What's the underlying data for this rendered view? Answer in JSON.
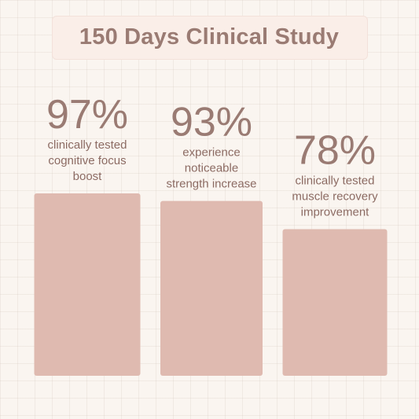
{
  "title": "150 Days Clinical Study",
  "colors": {
    "background": "#faf5f0",
    "title_box": "#faeee8",
    "text": "#9a7b73",
    "bar": "#dfbab0"
  },
  "chart_data": {
    "type": "bar",
    "title": "150 Days Clinical Study",
    "values": [
      97,
      93,
      78
    ],
    "value_labels": [
      "97%",
      "93%",
      "78%"
    ],
    "descriptions": [
      [
        "clinically tested",
        "cognitive focus",
        "boost"
      ],
      [
        "experience",
        "noticeable",
        "strength increase"
      ],
      [
        "clinically tested",
        "muscle recovery",
        "improvement"
      ]
    ],
    "unit": "%",
    "grid": true,
    "legend": "none"
  }
}
